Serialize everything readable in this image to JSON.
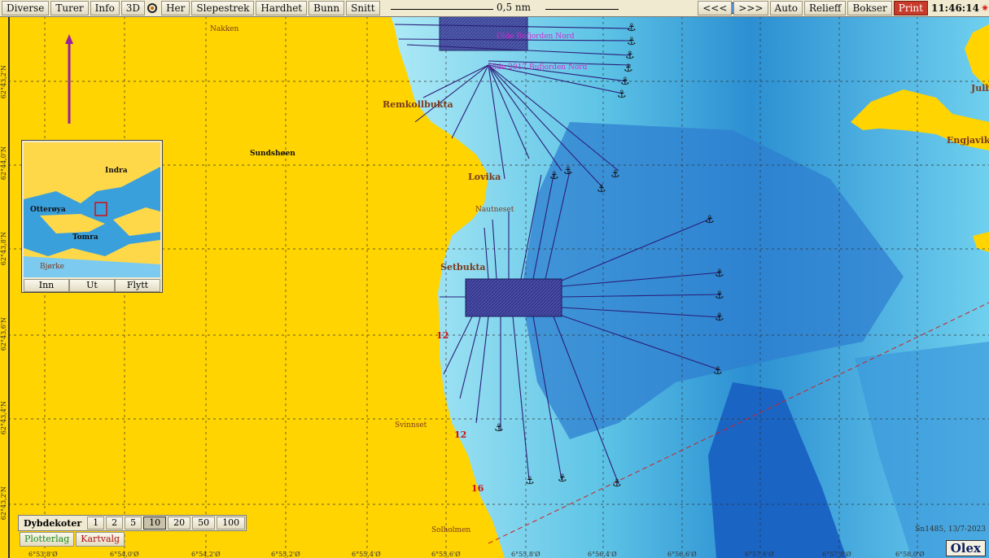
{
  "toolbar": {
    "items": [
      "Diverse",
      "Turer",
      "Info",
      "3D",
      "Her",
      "Slepestrek",
      "Hardhet",
      "Bunn",
      "Snitt"
    ],
    "scale_label": "0,5 nm",
    "depth_min": "0",
    "depth_max": "750",
    "right_items": [
      "<<<",
      ">>>",
      "Auto",
      "Relieff",
      "Bokser"
    ],
    "print_label": "Print",
    "clock": "11:46:14"
  },
  "lat_labels": [
    "62°43,2'N",
    "62°44,0'N",
    "62°43,8'N",
    "62°43,6'N",
    "62°43,4'N",
    "62°43,2'N"
  ],
  "lon_labels": [
    "6°53,8'Ø",
    "6°54,0'Ø",
    "6°54,2'Ø",
    "6°55,2'Ø",
    "6°55,4'Ø",
    "6°55,6'Ø",
    "6°55,8'Ø",
    "6°56,4'Ø",
    "6°56,6'Ø",
    "6°57,6'Ø",
    "6°57,8'Ø",
    "6°58,0'Ø"
  ],
  "place_names": {
    "nakken": "Nakken",
    "sundshoen": "Sundshøen",
    "remkollbukta": "Remkollbukta",
    "lovika": "Lovika",
    "nautneset": "Nautneset",
    "setbukta": "Setbukta",
    "svinnset": "Svinnset",
    "solholmen": "Solholmen",
    "engjavika": "Engjavika",
    "julba": "Julba"
  },
  "marks": {
    "mark_north_1": "Olde Bufjorden Nord",
    "mark_north_2": "Olde 2017 Bufjorden Nord"
  },
  "depth_soundings": [
    "12",
    "12",
    "16"
  ],
  "inset": {
    "names": [
      "Otterøya",
      "Tomra",
      "Indra",
      "Bjørke"
    ],
    "buttons": [
      "Inn",
      "Ut",
      "Flytt"
    ]
  },
  "dybdekoter": {
    "label": "Dybdekoter",
    "options": [
      "1",
      "2",
      "5",
      "10",
      "20",
      "50",
      "100"
    ],
    "selected": "10"
  },
  "layers": {
    "plotterlag": "Plotterlag",
    "kartvalg": "Kartvalg"
  },
  "chart_info": "Sn1485, 13/7-2023",
  "brand": "Olex",
  "colors": {
    "land": "#ffd400",
    "shallow": "#b8eef8",
    "deep": "#0b5fc2",
    "track": "#2a1f7a",
    "print": "#c83a2a"
  }
}
